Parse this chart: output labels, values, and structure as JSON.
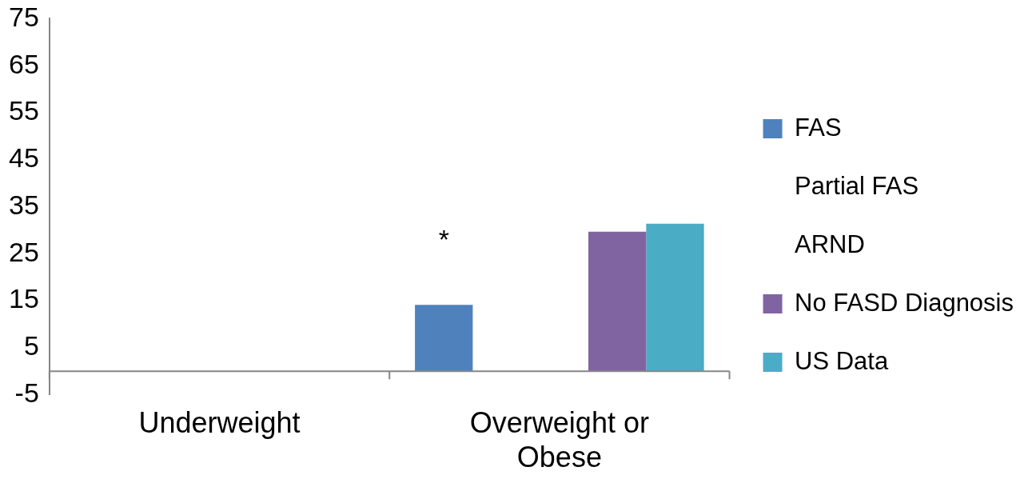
{
  "chart_data": {
    "type": "bar",
    "categories": [
      "Underweight",
      "Overweight or Obese"
    ],
    "series": [
      {
        "name": "FAS",
        "color": "#4f81bd",
        "values": [
          null,
          14.1
        ]
      },
      {
        "name": "Partial FAS",
        "values": [
          null,
          null
        ]
      },
      {
        "name": "ARND",
        "values": [
          null,
          null
        ]
      },
      {
        "name": "No FASD Diagnosis",
        "color": "#8064a2",
        "values": [
          null,
          29.7
        ]
      },
      {
        "name": "US Data",
        "color": "#4bacc6",
        "values": [
          null,
          31.4
        ]
      }
    ],
    "ylim": [
      -5,
      75
    ],
    "yticks": [
      -5,
      5,
      15,
      25,
      35,
      45,
      55,
      65,
      75
    ],
    "annotations": [
      "*"
    ],
    "legend": "right"
  }
}
